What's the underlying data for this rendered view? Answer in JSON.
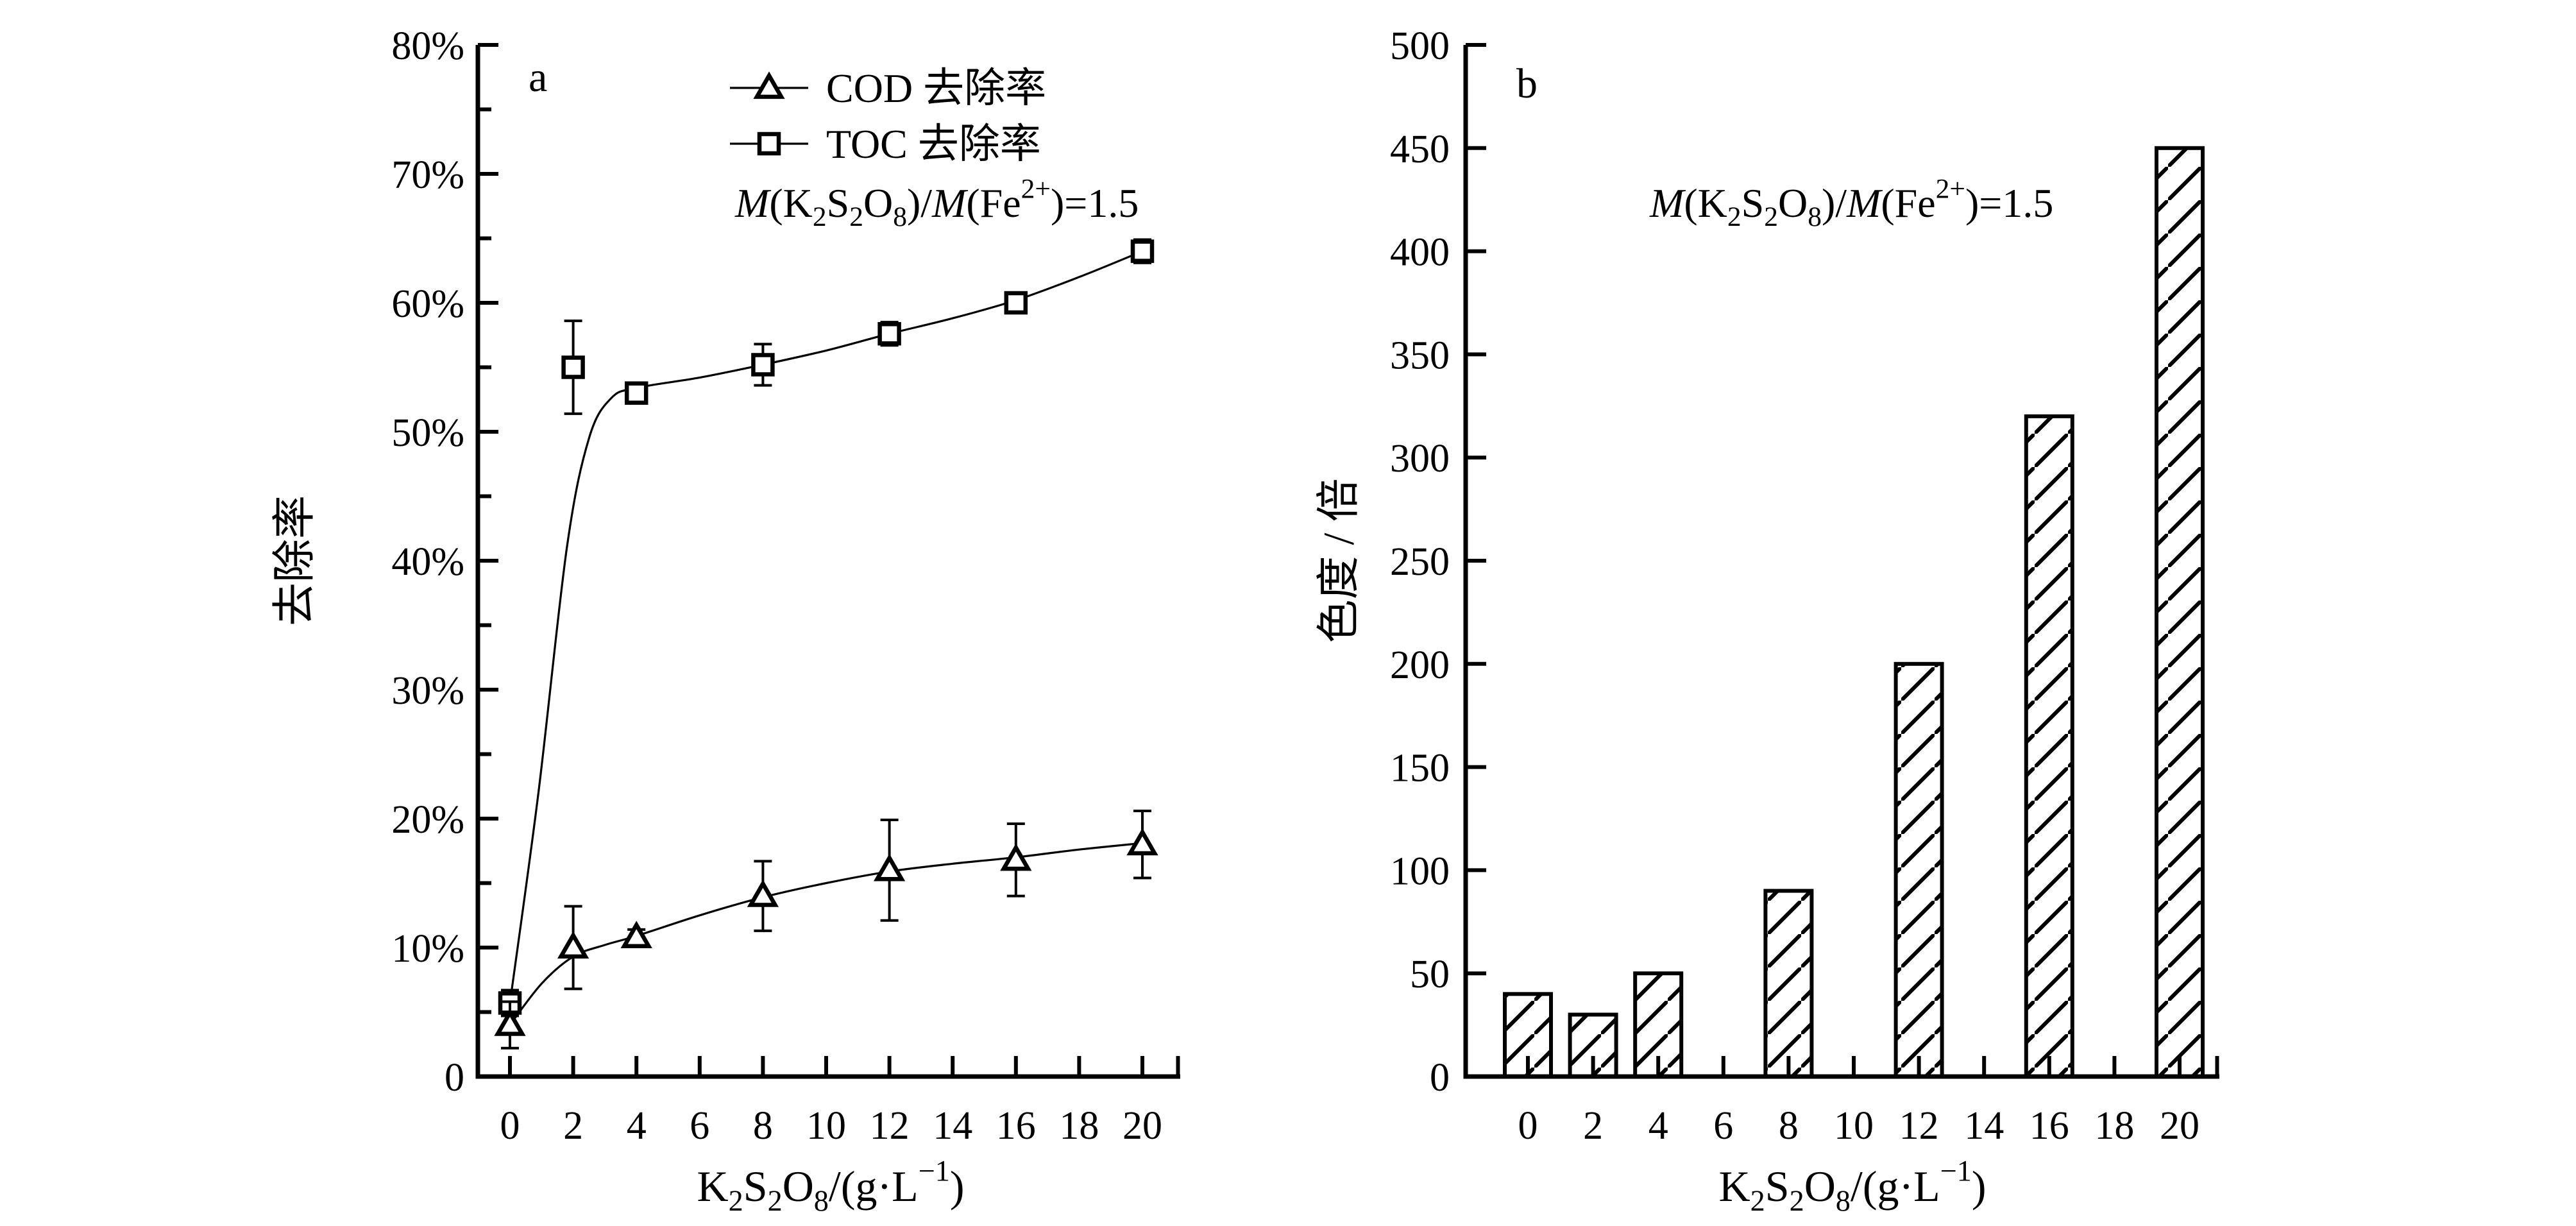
{
  "page": {
    "background": "#ffffff",
    "ink": "#000000"
  },
  "chart_data": [
    {
      "id": "a",
      "type": "line",
      "panel_label": "a",
      "x_axis": {
        "label_tokens": [
          {
            "t": "K"
          },
          {
            "t": "2",
            "sub": true
          },
          {
            "t": "S"
          },
          {
            "t": "2",
            "sub": true
          },
          {
            "t": "O"
          },
          {
            "t": "8",
            "sub": true
          },
          {
            "t": "/(g·L"
          },
          {
            "t": "−1",
            "sup": true
          },
          {
            "t": ")"
          }
        ],
        "tick_values": [
          0,
          2,
          4,
          6,
          8,
          10,
          12,
          14,
          16,
          18,
          20
        ],
        "tick_labels": [
          "0",
          "2",
          "4",
          "6",
          "8",
          "10",
          "12",
          "14",
          "16",
          "18",
          "20"
        ],
        "range": [
          0,
          20
        ]
      },
      "y_axis": {
        "label": "去除率",
        "range": [
          0,
          80
        ],
        "tick_step": 10,
        "minor_step": 5,
        "tick_labels": [
          "0",
          "10%",
          "20%",
          "30%",
          "40%",
          "50%",
          "60%",
          "70%",
          "80%"
        ]
      },
      "annotation_tokens": [
        {
          "t": "M",
          "i": true
        },
        {
          "t": "(K"
        },
        {
          "t": "2",
          "sub": true
        },
        {
          "t": "S"
        },
        {
          "t": "2",
          "sub": true
        },
        {
          "t": "O"
        },
        {
          "t": "8",
          "sub": true
        },
        {
          "t": ")/"
        },
        {
          "t": "M",
          "i": true
        },
        {
          "t": "(Fe"
        },
        {
          "t": "2+",
          "sup": true
        },
        {
          "t": ")=1.5"
        }
      ],
      "series": [
        {
          "name": "COD 去除率",
          "marker": "triangle",
          "x": [
            0,
            2,
            4,
            8,
            12,
            16,
            20
          ],
          "y": [
            4.0,
            10.0,
            10.8,
            14.0,
            16.0,
            16.8,
            18.0
          ],
          "yerr": [
            1.8,
            3.2,
            0.6,
            2.7,
            3.9,
            2.8,
            2.6
          ],
          "curve_points": [
            [
              0,
              4.0
            ],
            [
              1,
              7.2
            ],
            [
              2,
              9.3
            ],
            [
              3,
              10.2
            ],
            [
              4,
              10.9
            ],
            [
              6,
              12.5
            ],
            [
              8,
              13.9
            ],
            [
              10,
              15.0
            ],
            [
              12,
              15.9
            ],
            [
              14,
              16.5
            ],
            [
              16,
              17.0
            ],
            [
              18,
              17.6
            ],
            [
              20,
              18.1
            ]
          ]
        },
        {
          "name": "TOC 去除率",
          "marker": "square",
          "x": [
            0,
            2,
            4,
            8,
            12,
            16,
            20
          ],
          "y": [
            5.7,
            55.0,
            53.0,
            55.2,
            57.6,
            60.0,
            64.0
          ],
          "yerr": [
            1.0,
            3.6,
            0.6,
            1.6,
            0.9,
            0.7,
            0.9
          ],
          "curve_points": [
            [
              0,
              5.7
            ],
            [
              0.9,
              22
            ],
            [
              1.8,
              41
            ],
            [
              2.5,
              49.5
            ],
            [
              3.2,
              52.6
            ],
            [
              4,
              53.4
            ],
            [
              6,
              54.2
            ],
            [
              8,
              55.2
            ],
            [
              10,
              56.3
            ],
            [
              12,
              57.6
            ],
            [
              14,
              58.8
            ],
            [
              16,
              60.2
            ],
            [
              18,
              62.0
            ],
            [
              20,
              64.0
            ]
          ]
        }
      ]
    },
    {
      "id": "b",
      "type": "bar",
      "panel_label": "b",
      "x_axis": {
        "label_tokens": [
          {
            "t": "K"
          },
          {
            "t": "2",
            "sub": true
          },
          {
            "t": "S"
          },
          {
            "t": "2",
            "sub": true
          },
          {
            "t": "O"
          },
          {
            "t": "8",
            "sub": true
          },
          {
            "t": "/(g·L"
          },
          {
            "t": "−1",
            "sup": true
          },
          {
            "t": ")"
          }
        ],
        "tick_values": [
          0,
          2,
          4,
          6,
          8,
          10,
          12,
          14,
          16,
          18,
          20
        ],
        "tick_labels": [
          "0",
          "2",
          "4",
          "6",
          "8",
          "10",
          "12",
          "14",
          "16",
          "18",
          "20"
        ],
        "range": [
          0,
          20
        ]
      },
      "y_axis": {
        "label": "色度 / 倍",
        "range": [
          0,
          500
        ],
        "tick_step": 50,
        "tick_labels": [
          "0",
          "50",
          "100",
          "150",
          "200",
          "250",
          "300",
          "350",
          "400",
          "450",
          "500"
        ]
      },
      "annotation_tokens": [
        {
          "t": "M",
          "i": true
        },
        {
          "t": "(K"
        },
        {
          "t": "2",
          "sub": true
        },
        {
          "t": "S"
        },
        {
          "t": "2",
          "sub": true
        },
        {
          "t": "O"
        },
        {
          "t": "8",
          "sub": true
        },
        {
          "t": ")/"
        },
        {
          "t": "M",
          "i": true
        },
        {
          "t": "(Fe"
        },
        {
          "t": "2+",
          "sup": true
        },
        {
          "t": ")=1.5"
        }
      ],
      "bars": {
        "x": [
          0,
          2,
          4,
          8,
          12,
          16,
          20
        ],
        "values": [
          40,
          30,
          50,
          90,
          200,
          320,
          450
        ],
        "hatch": "diagonal"
      }
    }
  ]
}
